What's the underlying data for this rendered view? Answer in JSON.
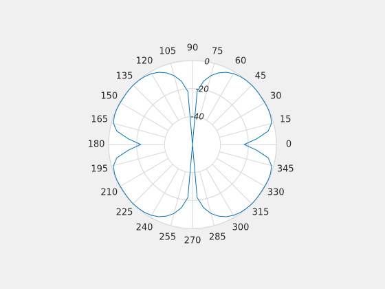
{
  "chart_data": {
    "type": "polar",
    "theta": [
      0,
      5,
      10,
      15,
      20,
      25,
      30,
      35,
      40,
      45,
      50,
      55,
      60,
      65,
      70,
      75,
      80,
      85,
      90,
      95,
      100,
      105,
      110,
      115,
      120,
      125,
      130,
      135,
      140,
      145,
      150,
      155,
      160,
      165,
      170,
      175,
      180,
      185,
      190,
      195,
      200,
      205,
      210,
      215,
      220,
      225,
      230,
      235,
      240,
      245,
      250,
      255,
      260,
      265,
      270,
      275,
      280,
      285,
      290,
      295,
      300,
      305,
      310,
      315,
      320,
      325,
      330,
      335,
      340,
      345,
      350,
      355
    ],
    "values": [
      -23,
      -14,
      -5,
      -1.5,
      -0.5,
      -0.2,
      -0.3,
      -0.3,
      -0.1,
      0,
      -0.2,
      -0.6,
      -1.5,
      -3,
      -5.5,
      -9,
      -14,
      -22,
      -60,
      -22,
      -14,
      -9,
      -5.5,
      -3,
      -1.5,
      -0.6,
      -0.2,
      0,
      -0.1,
      -0.3,
      -0.3,
      -0.2,
      -0.5,
      -1.5,
      -5,
      -14,
      -23,
      -14,
      -5,
      -1.5,
      -0.5,
      -0.2,
      -0.3,
      -0.3,
      -0.1,
      0,
      -0.2,
      -0.6,
      -1.5,
      -3,
      -5.5,
      -9,
      -14,
      -22,
      -60,
      -22,
      -14,
      -9,
      -5.5,
      -3,
      -1.5,
      -0.6,
      -0.2,
      0,
      -0.1,
      -0.3,
      -0.3,
      -0.2,
      -0.5,
      -1.5,
      -5,
      -14
    ],
    "color": "#0072bd",
    "rlim": [
      -60,
      0
    ],
    "rticks": [
      -40,
      -20,
      0
    ],
    "thetaticks": [
      0,
      15,
      30,
      45,
      60,
      75,
      90,
      105,
      120,
      135,
      150,
      165,
      180,
      195,
      210,
      225,
      240,
      255,
      270,
      285,
      300,
      315,
      330,
      345
    ]
  }
}
